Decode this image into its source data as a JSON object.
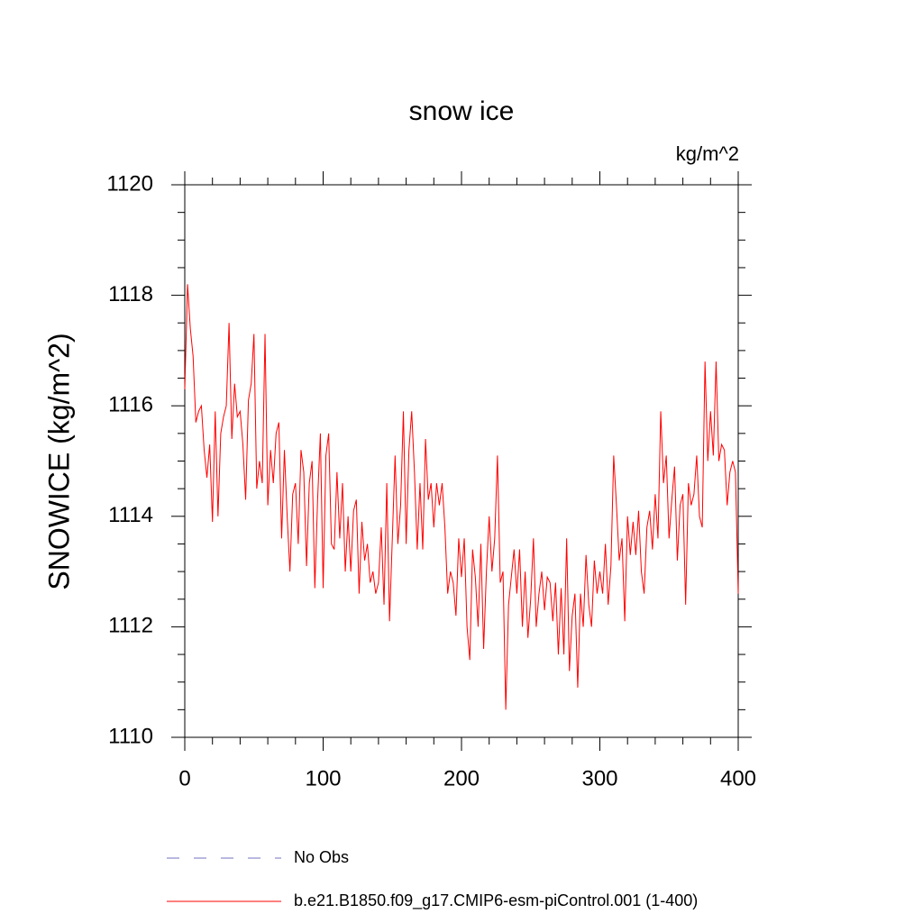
{
  "chart_data": {
    "type": "line",
    "title": "snow ice",
    "units_label": "kg/m^2",
    "ylabel": "SNOWICE  (kg/m^2)",
    "xlim": [
      0,
      400
    ],
    "xticks": [
      0,
      100,
      200,
      300,
      400
    ],
    "xminorticks": [
      20,
      40,
      60,
      80,
      120,
      140,
      160,
      180,
      220,
      240,
      260,
      280,
      320,
      340,
      360,
      380
    ],
    "ylim": [
      1110,
      1120
    ],
    "yticks": [
      1110,
      1112,
      1114,
      1116,
      1118,
      1120
    ],
    "yminorticks": [
      1110.5,
      1111,
      1111.5,
      1112.5,
      1113,
      1113.5,
      1114.5,
      1115,
      1115.5,
      1116.5,
      1117,
      1117.5,
      1118.5,
      1119,
      1119.5
    ],
    "legend": [
      {
        "name": "No Obs",
        "color": "#7070c0",
        "style": "dashed"
      }
    ],
    "x": [
      0,
      2,
      4,
      6,
      8,
      10,
      12,
      14,
      16,
      18,
      20,
      22,
      24,
      26,
      28,
      30,
      32,
      34,
      36,
      38,
      40,
      42,
      44,
      46,
      48,
      50,
      52,
      54,
      56,
      58,
      60,
      62,
      64,
      66,
      68,
      70,
      72,
      74,
      76,
      78,
      80,
      82,
      84,
      86,
      88,
      90,
      92,
      94,
      96,
      98,
      100,
      102,
      104,
      106,
      108,
      110,
      112,
      114,
      116,
      118,
      120,
      122,
      124,
      126,
      128,
      130,
      132,
      134,
      136,
      138,
      140,
      142,
      144,
      146,
      148,
      150,
      152,
      154,
      156,
      158,
      160,
      162,
      164,
      166,
      168,
      170,
      172,
      174,
      176,
      178,
      180,
      182,
      184,
      186,
      188,
      190,
      192,
      194,
      196,
      198,
      200,
      202,
      204,
      206,
      208,
      210,
      212,
      214,
      216,
      218,
      220,
      222,
      224,
      226,
      228,
      230,
      232,
      234,
      236,
      238,
      240,
      242,
      244,
      246,
      248,
      250,
      252,
      254,
      256,
      258,
      260,
      262,
      264,
      266,
      268,
      270,
      272,
      274,
      276,
      278,
      280,
      282,
      284,
      286,
      288,
      290,
      292,
      294,
      296,
      298,
      300,
      302,
      304,
      306,
      308,
      310,
      312,
      314,
      316,
      318,
      320,
      322,
      324,
      326,
      328,
      330,
      332,
      334,
      336,
      338,
      340,
      342,
      344,
      346,
      348,
      350,
      352,
      354,
      356,
      358,
      360,
      362,
      364,
      366,
      368,
      370,
      372,
      374,
      376,
      378,
      380,
      382,
      384,
      386,
      388,
      390,
      392,
      394,
      396,
      398,
      400
    ],
    "series": [
      {
        "name": "b.e21.B1850.f09_g17.CMIP6-esm-piControl.001 (1-400)",
        "color": "#ff0000",
        "values": [
          1116.3,
          1118.2,
          1117.4,
          1116.9,
          1115.7,
          1115.9,
          1116.0,
          1115.2,
          1114.7,
          1115.3,
          1113.9,
          1115.9,
          1114.0,
          1115.5,
          1115.8,
          1116.0,
          1117.5,
          1115.4,
          1116.4,
          1115.8,
          1115.9,
          1115.3,
          1114.3,
          1116.1,
          1116.4,
          1117.3,
          1114.5,
          1115.0,
          1114.6,
          1117.3,
          1114.2,
          1115.2,
          1114.6,
          1115.5,
          1115.7,
          1113.6,
          1115.2,
          1114.0,
          1113.0,
          1114.4,
          1114.6,
          1113.5,
          1115.2,
          1114.8,
          1113.1,
          1114.6,
          1115.0,
          1112.7,
          1114.3,
          1115.5,
          1112.7,
          1115.1,
          1115.5,
          1113.5,
          1113.4,
          1114.8,
          1113.6,
          1114.6,
          1113.0,
          1114.0,
          1113.0,
          1114.1,
          1114.3,
          1112.6,
          1113.9,
          1113.2,
          1113.5,
          1112.8,
          1113.0,
          1112.6,
          1112.8,
          1113.8,
          1112.4,
          1114.6,
          1112.1,
          1113.6,
          1115.1,
          1113.5,
          1114.2,
          1115.9,
          1113.5,
          1115.2,
          1115.9,
          1114.8,
          1113.4,
          1114.6,
          1113.4,
          1115.4,
          1114.3,
          1114.6,
          1113.8,
          1114.6,
          1114.2,
          1114.6,
          1113.8,
          1112.6,
          1113.0,
          1112.8,
          1112.2,
          1113.6,
          1112.9,
          1113.6,
          1112.0,
          1111.4,
          1113.4,
          1112.9,
          1112.0,
          1113.5,
          1111.6,
          1113.0,
          1114.0,
          1113.0,
          1113.6,
          1115.1,
          1112.8,
          1113.0,
          1110.5,
          1112.4,
          1112.9,
          1113.4,
          1112.6,
          1113.4,
          1112.0,
          1113.0,
          1111.8,
          1112.5,
          1113.6,
          1112.0,
          1112.6,
          1113.0,
          1112.3,
          1112.9,
          1112.8,
          1112.1,
          1112.8,
          1111.5,
          1112.7,
          1111.5,
          1113.6,
          1111.2,
          1112.2,
          1112.6,
          1110.9,
          1112.6,
          1112.0,
          1113.3,
          1112.4,
          1112.0,
          1113.2,
          1112.6,
          1113.0,
          1112.6,
          1113.5,
          1112.4,
          1113.1,
          1115.1,
          1114.2,
          1113.2,
          1113.6,
          1112.1,
          1114.0,
          1113.3,
          1113.9,
          1113.3,
          1114.1,
          1113.0,
          1112.6,
          1113.8,
          1114.1,
          1113.4,
          1114.4,
          1113.6,
          1115.9,
          1114.6,
          1115.1,
          1113.6,
          1114.3,
          1114.9,
          1113.2,
          1114.2,
          1114.4,
          1112.4,
          1114.6,
          1114.2,
          1114.4,
          1115.1,
          1114.0,
          1113.8,
          1116.8,
          1115.0,
          1115.9,
          1115.1,
          1116.8,
          1115.0,
          1115.3,
          1115.2,
          1114.2,
          1114.8,
          1115.0,
          1114.8,
          1112.6
        ]
      }
    ]
  }
}
